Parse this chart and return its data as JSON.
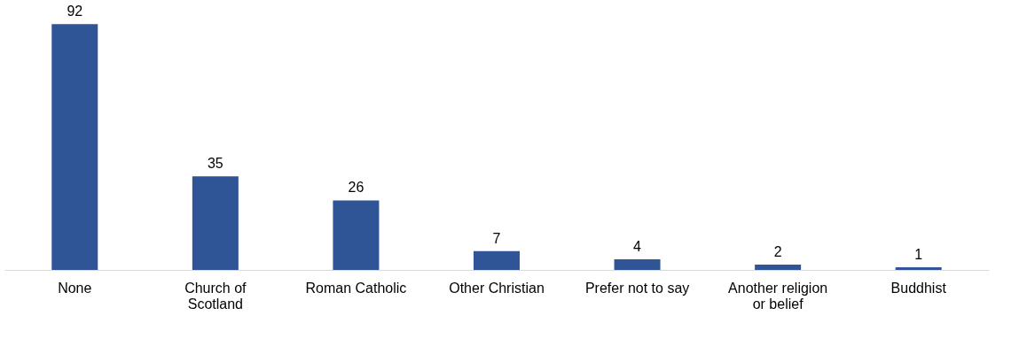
{
  "chart_data": {
    "type": "bar",
    "categories": [
      "None",
      "Church of Scotland",
      "Roman Catholic",
      "Other Christian",
      "Prefer not to say",
      "Another religion or belief",
      "Buddhist"
    ],
    "values": [
      92,
      35,
      26,
      7,
      4,
      2,
      1
    ],
    "color": "#2f5597",
    "data_labels": true,
    "grid": false
  }
}
